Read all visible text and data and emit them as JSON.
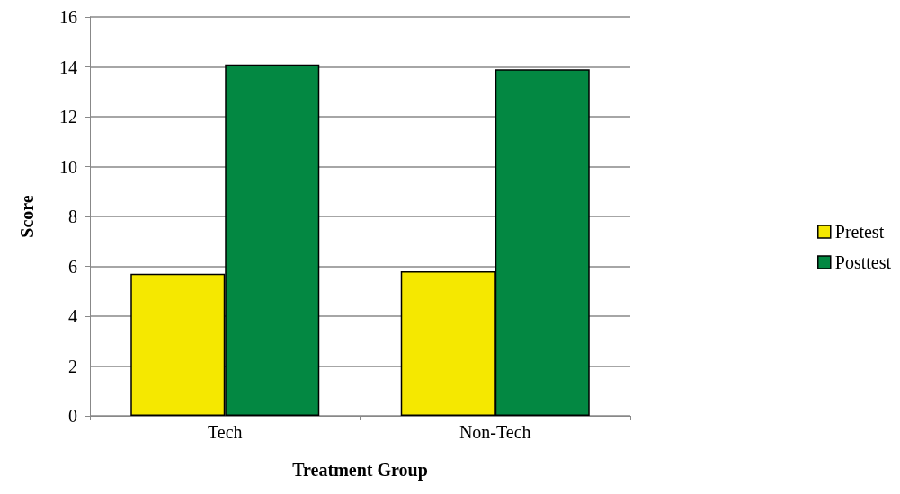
{
  "chart_data": {
    "type": "bar",
    "xlabel": "Treatment Group",
    "ylabel": "Score",
    "categories": [
      "Tech",
      "Non-Tech"
    ],
    "series": [
      {
        "name": "Pretest",
        "color": "#f5e800",
        "values": [
          5.7,
          5.8
        ]
      },
      {
        "name": "Posttest",
        "color": "#038842",
        "values": [
          14.1,
          13.9
        ]
      }
    ],
    "ylim": [
      0,
      16
    ],
    "yticks": [
      0,
      2,
      4,
      6,
      8,
      10,
      12,
      14,
      16
    ],
    "grid": "y",
    "legend": "right"
  }
}
